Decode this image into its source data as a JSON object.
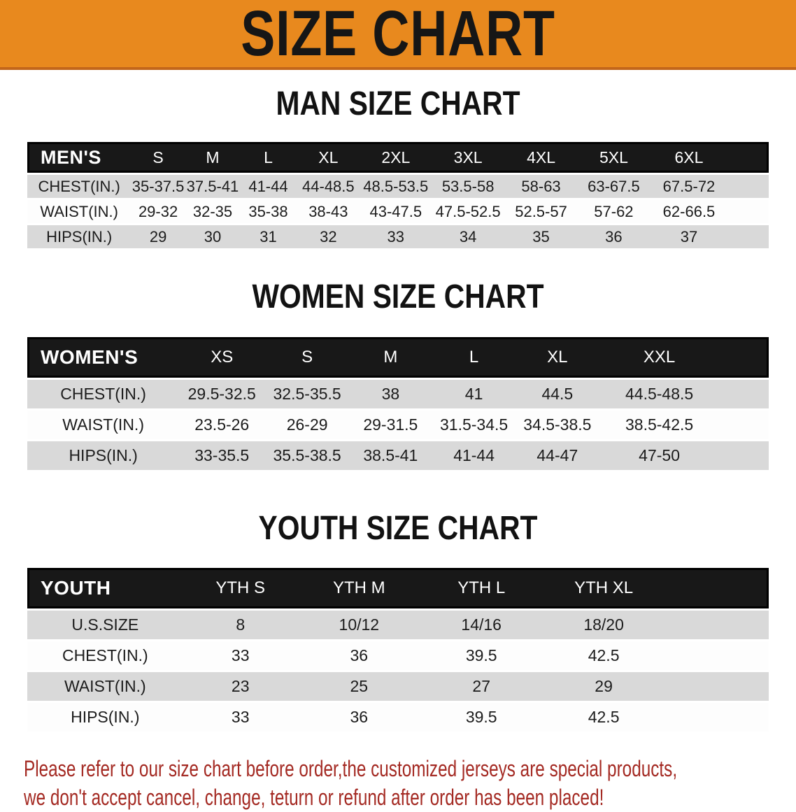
{
  "banner": {
    "title": "SIZE CHART",
    "bg_color": "#E8891E",
    "text_color": "#161616"
  },
  "sections": [
    {
      "heading": "MAN SIZE CHART",
      "group_label": "MEN'S",
      "columns": [
        "S",
        "M",
        "L",
        "XL",
        "2XL",
        "3XL",
        "4XL",
        "5XL",
        "6XL"
      ],
      "rows": [
        {
          "label": "CHEST(IN.)",
          "values": [
            "35-37.5",
            "37.5-41",
            "41-44",
            "44-48.5",
            "48.5-53.5",
            "53.5-58",
            "58-63",
            "63-67.5",
            "67.5-72"
          ]
        },
        {
          "label": "WAIST(IN.)",
          "values": [
            "29-32",
            "32-35",
            "35-38",
            "38-43",
            "43-47.5",
            "47.5-52.5",
            "52.5-57",
            "57-62",
            "62-66.5"
          ]
        },
        {
          "label": "HIPS(IN.)",
          "values": [
            "29",
            "30",
            "31",
            "32",
            "33",
            "34",
            "35",
            "36",
            "37"
          ]
        }
      ]
    },
    {
      "heading": "WOMEN SIZE CHART",
      "group_label": "WOMEN'S",
      "columns": [
        "XS",
        "S",
        "M",
        "L",
        "XL",
        "XXL"
      ],
      "rows": [
        {
          "label": "CHEST(IN.)",
          "values": [
            "29.5-32.5",
            "32.5-35.5",
            "38",
            "41",
            "44.5",
            "44.5-48.5"
          ]
        },
        {
          "label": "WAIST(IN.)",
          "values": [
            "23.5-26",
            "26-29",
            "29-31.5",
            "31.5-34.5",
            "34.5-38.5",
            "38.5-42.5"
          ]
        },
        {
          "label": "HIPS(IN.)",
          "values": [
            "33-35.5",
            "35.5-38.5",
            "38.5-41",
            "41-44",
            "44-47",
            "47-50"
          ]
        }
      ]
    },
    {
      "heading": "YOUTH SIZE CHART",
      "group_label": "YOUTH",
      "columns": [
        "YTH S",
        "YTH M",
        "YTH L",
        "YTH XL"
      ],
      "rows": [
        {
          "label": "U.S.SIZE",
          "values": [
            "8",
            "10/12",
            "14/16",
            "18/20"
          ]
        },
        {
          "label": "CHEST(IN.)",
          "values": [
            "33",
            "36",
            "39.5",
            "42.5"
          ]
        },
        {
          "label": "WAIST(IN.)",
          "values": [
            "23",
            "25",
            "27",
            "29"
          ]
        },
        {
          "label": "HIPS(IN.)",
          "values": [
            "33",
            "36",
            "39.5",
            "42.5"
          ]
        }
      ]
    }
  ],
  "table_style": {
    "header_band_color": "#181818",
    "header_text_color": "#FFFFFF",
    "stripe_row_color": "#D9D9D9",
    "plain_row_color": "#FDFDFD"
  },
  "disclaimer": {
    "line1": "Please refer to our size chart before order,the customized jerseys are special products,",
    "line2": "we don't accept cancel, change, teturn or refund after order has been placed!",
    "color": "#A42A23"
  }
}
